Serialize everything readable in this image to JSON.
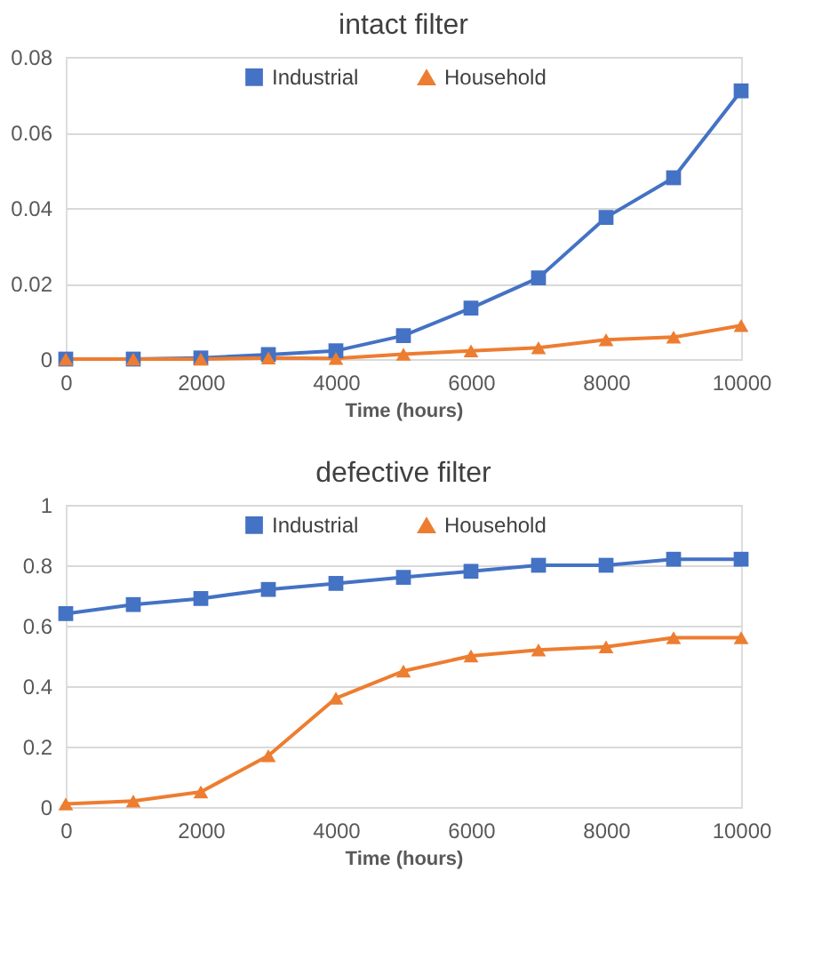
{
  "chart_data": [
    {
      "type": "line",
      "title": "intact filter",
      "xlabel": "Time (hours)",
      "x": [
        0,
        1000,
        2000,
        3000,
        4000,
        5000,
        6000,
        7000,
        8000,
        9000,
        10000
      ],
      "series": [
        {
          "name": "Industrial",
          "color": "#4472c4",
          "marker": "square",
          "values": [
            0,
            0,
            0.0003,
            0.0012,
            0.0022,
            0.0062,
            0.0135,
            0.0215,
            0.0375,
            0.048,
            0.071
          ]
        },
        {
          "name": "Household",
          "color": "#ed7d31",
          "marker": "triangle",
          "values": [
            0,
            0,
            0,
            0.0003,
            0.0002,
            0.0013,
            0.0022,
            0.003,
            0.0051,
            0.0058,
            0.0089
          ]
        }
      ],
      "xlim": [
        0,
        10000
      ],
      "xticks": [
        0,
        2000,
        4000,
        6000,
        8000,
        10000
      ],
      "ylim": [
        0,
        0.08
      ],
      "yticks": [
        0,
        0.02,
        0.04,
        0.06,
        0.08
      ],
      "grid": "y",
      "legend": "top",
      "line_style": "solid"
    },
    {
      "type": "line",
      "title": "defective filter",
      "xlabel": "Time (hours)",
      "x": [
        0,
        1000,
        2000,
        3000,
        4000,
        5000,
        6000,
        7000,
        8000,
        9000,
        10000
      ],
      "series": [
        {
          "name": "Industrial",
          "color": "#4472c4",
          "marker": "square",
          "values": [
            0.64,
            0.67,
            0.69,
            0.72,
            0.74,
            0.76,
            0.78,
            0.8,
            0.8,
            0.82,
            0.82
          ]
        },
        {
          "name": "Household",
          "color": "#ed7d31",
          "marker": "triangle",
          "values": [
            0.01,
            0.02,
            0.05,
            0.17,
            0.36,
            0.45,
            0.5,
            0.52,
            0.53,
            0.56,
            0.56
          ]
        }
      ],
      "xlim": [
        0,
        10000
      ],
      "xticks": [
        0,
        2000,
        4000,
        6000,
        8000,
        10000
      ],
      "ylim": [
        0,
        1
      ],
      "yticks": [
        0,
        0.2,
        0.4,
        0.6,
        0.8,
        1
      ],
      "grid": "y",
      "legend": "top",
      "line_style": "solid"
    }
  ]
}
